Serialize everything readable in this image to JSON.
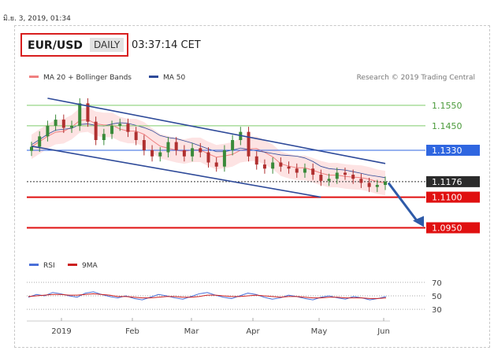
{
  "timestamp": "มิ.ย. 3, 2019, 01:34",
  "header": {
    "symbol": "EUR/USD",
    "timeframe": "DAILY",
    "time": "03:37:14 CET"
  },
  "legend": {
    "ma20": "MA 20 + Bollinger Bands",
    "ma50": "MA 50"
  },
  "credit": "Research © 2019 Trading Central",
  "rsi_legend": {
    "rsi": "RSI",
    "ma": "9MA"
  },
  "colors": {
    "ma20": "#f08080",
    "ma50": "#2e4a99",
    "band_fill": "#fde3e3",
    "up": "#3a8a3a",
    "down": "#b03030",
    "channel": "#2e4a99",
    "resistance": "#2f66e0",
    "support": "#e01010",
    "target_green": "#7fcc6a"
  },
  "chart_data": [
    {
      "type": "candlestick",
      "x_ticks": [
        "2019",
        "Feb",
        "Mar",
        "Apr",
        "May",
        "Jun"
      ],
      "ylim": [
        1.084,
        1.165
      ],
      "closes_approx": [
        1.1347,
        1.1398,
        1.145,
        1.148,
        1.144,
        1.145,
        1.156,
        1.147,
        1.138,
        1.141,
        1.145,
        1.146,
        1.142,
        1.138,
        1.133,
        1.13,
        1.132,
        1.137,
        1.133,
        1.13,
        1.134,
        1.132,
        1.127,
        1.125,
        1.133,
        1.138,
        1.142,
        1.13,
        1.126,
        1.124,
        1.127,
        1.125,
        1.124,
        1.122,
        1.124,
        1.121,
        1.118,
        1.119,
        1.122,
        1.121,
        1.119,
        1.117,
        1.115,
        1.116,
        1.1176
      ],
      "levels": [
        {
          "value": 1.155,
          "label": "1.1550",
          "kind": "target"
        },
        {
          "value": 1.145,
          "label": "1.1450",
          "kind": "target"
        },
        {
          "value": 1.133,
          "label": "1.1330",
          "kind": "resistance"
        },
        {
          "value": 1.1176,
          "label": "1.1176",
          "kind": "last"
        },
        {
          "value": 1.11,
          "label": "1.1100",
          "kind": "support"
        },
        {
          "value": 1.095,
          "label": "1.0950",
          "kind": "support"
        }
      ],
      "annotations": [
        "descending channel",
        "bearish arrow to 1.0950"
      ]
    },
    {
      "type": "line",
      "title": "RSI",
      "ylim": [
        22,
        78
      ],
      "y_ticks": [
        70,
        50,
        30
      ],
      "series": [
        {
          "name": "RSI",
          "values": [
            48,
            52,
            50,
            55,
            53,
            50,
            48,
            54,
            56,
            52,
            49,
            47,
            50,
            46,
            44,
            48,
            52,
            50,
            47,
            45,
            49,
            53,
            55,
            51,
            48,
            46,
            50,
            54,
            52,
            48,
            45,
            47,
            51,
            49,
            46,
            44,
            48,
            50,
            47,
            45,
            49,
            47,
            44,
            46,
            49
          ]
        },
        {
          "name": "9MA",
          "values": [
            49,
            50,
            51,
            52,
            52,
            51,
            51,
            52,
            53,
            52,
            51,
            49,
            49,
            48,
            47,
            47,
            48,
            49,
            49,
            48,
            48,
            49,
            51,
            51,
            50,
            49,
            49,
            50,
            51,
            50,
            49,
            48,
            49,
            49,
            48,
            47,
            47,
            48,
            48,
            47,
            47,
            47,
            46,
            46,
            47
          ]
        }
      ]
    }
  ]
}
